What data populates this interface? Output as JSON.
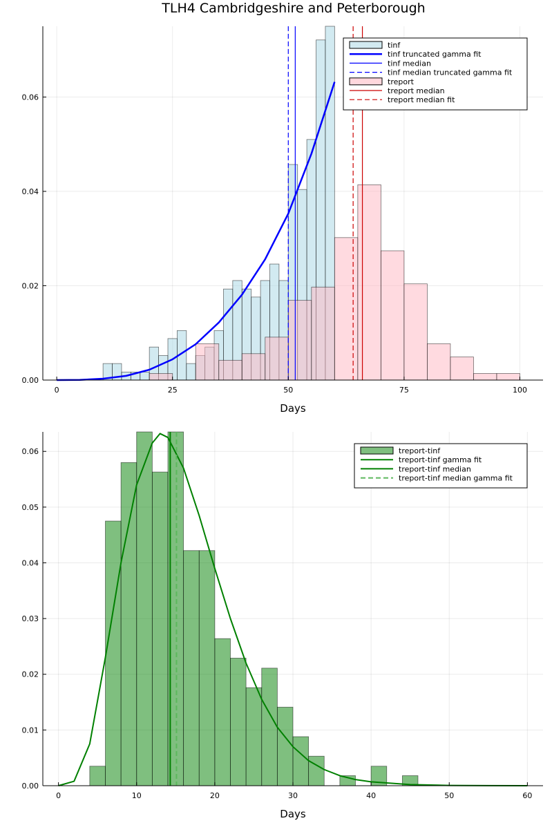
{
  "colors": {
    "tinf_fill": "#add8e6",
    "treport_fill": "#ffb6c1",
    "diff_fill": "#008000",
    "blue": "#0000ff",
    "red": "#cc0000",
    "green": "#008000",
    "bar_stroke": "#000000"
  },
  "chart_data": [
    {
      "type": "histogram",
      "title": "TLH4 Cambridgeshire and Peterborough",
      "xlabel": "Days",
      "ylabel": "",
      "xlim": [
        -3,
        105
      ],
      "ylim": [
        0,
        0.075
      ],
      "xticks": [
        0,
        25,
        50,
        75,
        100
      ],
      "xtick_labels": [
        "0",
        "25",
        "50",
        "75",
        "100"
      ],
      "yticks": [
        0,
        0.02,
        0.04,
        0.06
      ],
      "ytick_labels": [
        "0.00",
        "0.02",
        "0.04",
        "0.06"
      ],
      "grid": true,
      "legend_position": "top-right",
      "legend": [
        {
          "label": "tinf",
          "kind": "patch",
          "color": "#add8e6"
        },
        {
          "label": "tinf truncated gamma fit",
          "kind": "line",
          "color": "#0000ff",
          "dash": false,
          "width": 2.5
        },
        {
          "label": "tinf median",
          "kind": "line",
          "color": "#0000ff",
          "dash": false,
          "width": 1.2
        },
        {
          "label": "tinf median truncated gamma fit",
          "kind": "line",
          "color": "#0000ff",
          "dash": true,
          "width": 1.2
        },
        {
          "label": "treport",
          "kind": "patch",
          "color": "#ffb6c1"
        },
        {
          "label": "treport median",
          "kind": "line",
          "color": "#cc0000",
          "dash": false,
          "width": 1.2
        },
        {
          "label": "treport median fit",
          "kind": "line",
          "color": "#cc0000",
          "dash": true,
          "width": 1.2
        }
      ],
      "histograms": [
        {
          "name": "tinf",
          "color": "#add8e6",
          "opacity": 0.55,
          "bin_width": 2,
          "bins": [
            [
              10,
              0.0035
            ],
            [
              12,
              0.0035
            ],
            [
              14,
              0.0017
            ],
            [
              16,
              0.0017
            ],
            [
              18,
              0.0017
            ],
            [
              20,
              0.007
            ],
            [
              22,
              0.0052
            ],
            [
              24,
              0.0088
            ],
            [
              26,
              0.0105
            ],
            [
              28,
              0.0035
            ],
            [
              30,
              0.0052
            ],
            [
              32,
              0.007
            ],
            [
              34,
              0.0105
            ],
            [
              36,
              0.0193
            ],
            [
              38,
              0.0211
            ],
            [
              40,
              0.0193
            ],
            [
              42,
              0.0176
            ],
            [
              44,
              0.0211
            ],
            [
              46,
              0.0246
            ],
            [
              48,
              0.0211
            ],
            [
              50,
              0.0457
            ],
            [
              52,
              0.0404
            ],
            [
              54,
              0.051
            ],
            [
              56,
              0.0721
            ],
            [
              58,
              0.0756
            ]
          ]
        },
        {
          "name": "treport",
          "color": "#ffb6c1",
          "opacity": 0.5,
          "bin_width": 5,
          "bins": [
            [
              20,
              0.0014
            ],
            [
              30,
              0.0077
            ],
            [
              35,
              0.0042
            ],
            [
              40,
              0.0056
            ],
            [
              45,
              0.0091
            ],
            [
              50,
              0.0169
            ],
            [
              55,
              0.0197
            ],
            [
              60,
              0.0302
            ],
            [
              65,
              0.0414
            ],
            [
              70,
              0.0274
            ],
            [
              75,
              0.0204
            ],
            [
              80,
              0.0077
            ],
            [
              85,
              0.0049
            ],
            [
              90,
              0.0014
            ],
            [
              95,
              0.0014
            ]
          ]
        }
      ],
      "curves": [
        {
          "name": "tinf truncated gamma fit",
          "color": "#0000ff",
          "width": 2.5,
          "x": [
            0,
            5,
            10,
            15,
            20,
            25,
            30,
            35,
            40,
            45,
            50,
            55,
            60
          ],
          "y": [
            0,
            3e-05,
            0.0003,
            0.0009,
            0.0022,
            0.0044,
            0.0076,
            0.0122,
            0.0181,
            0.0256,
            0.0353,
            0.048,
            0.0632
          ]
        }
      ],
      "vlines": [
        {
          "name": "tinf median",
          "x": 51.5,
          "color": "#0000ff",
          "dash": false,
          "width": 1.2
        },
        {
          "name": "tinf median truncated gamma fit",
          "x": 50.0,
          "color": "#0000ff",
          "dash": true,
          "width": 1.2
        },
        {
          "name": "treport median",
          "x": 66.0,
          "color": "#cc0000",
          "dash": false,
          "width": 1.2
        },
        {
          "name": "treport median fit",
          "x": 64.0,
          "color": "#cc0000",
          "dash": true,
          "width": 1.2
        }
      ]
    },
    {
      "type": "histogram",
      "title": "",
      "xlabel": "Days",
      "ylabel": "",
      "xlim": [
        -2,
        62
      ],
      "ylim": [
        0,
        0.0635
      ],
      "xticks": [
        0,
        10,
        20,
        30,
        40,
        50,
        60
      ],
      "xtick_labels": [
        "0",
        "10",
        "20",
        "30",
        "40",
        "50",
        "60"
      ],
      "yticks": [
        0,
        0.01,
        0.02,
        0.03,
        0.04,
        0.05,
        0.06
      ],
      "ytick_labels": [
        "0.00",
        "0.01",
        "0.02",
        "0.03",
        "0.04",
        "0.05",
        "0.06"
      ],
      "grid": true,
      "legend_position": "top-right",
      "legend": [
        {
          "label": "treport-tinf",
          "kind": "patch",
          "color": "#008000"
        },
        {
          "label": "treport-tinf gamma fit",
          "kind": "line",
          "color": "#008000",
          "dash": false,
          "width": 2
        },
        {
          "label": "treport-tinf median",
          "kind": "line",
          "color": "#008000",
          "dash": false,
          "width": 2
        },
        {
          "label": "treport-tinf median gamma fit",
          "kind": "line",
          "color": "#5cb85c",
          "dash": true,
          "width": 2
        }
      ],
      "histograms": [
        {
          "name": "treport-tinf",
          "color": "#008000",
          "opacity": 0.5,
          "bin_width": 2,
          "bins": [
            [
              4,
              0.0035
            ],
            [
              6,
              0.0475
            ],
            [
              8,
              0.058
            ],
            [
              10,
              0.0635
            ],
            [
              12,
              0.0563
            ],
            [
              14,
              0.0635
            ],
            [
              16,
              0.0422
            ],
            [
              18,
              0.0422
            ],
            [
              20,
              0.0264
            ],
            [
              22,
              0.0229
            ],
            [
              24,
              0.0176
            ],
            [
              26,
              0.0211
            ],
            [
              28,
              0.0141
            ],
            [
              30,
              0.0088
            ],
            [
              32,
              0.0053
            ],
            [
              36,
              0.0018
            ],
            [
              40,
              0.0035
            ],
            [
              44,
              0.0018
            ]
          ]
        }
      ],
      "curves": [
        {
          "name": "treport-tinf gamma fit",
          "color": "#008000",
          "width": 2,
          "x": [
            0,
            2,
            4,
            6,
            8,
            10,
            12,
            13,
            14,
            16,
            18,
            20,
            22,
            24,
            26,
            28,
            30,
            32,
            34,
            36,
            38,
            40,
            45,
            50,
            55,
            60
          ],
          "y": [
            0,
            0.0008,
            0.0075,
            0.023,
            0.04,
            0.054,
            0.0615,
            0.0632,
            0.0625,
            0.057,
            0.0485,
            0.039,
            0.03,
            0.022,
            0.0155,
            0.0105,
            0.007,
            0.0045,
            0.0029,
            0.0018,
            0.0011,
            0.0007,
            0.0002,
            5e-05,
            1e-05,
            0
          ]
        }
      ],
      "vlines": [
        {
          "name": "treport-tinf median",
          "x": 14.3,
          "color": "#008000",
          "dash": false,
          "width": 2
        },
        {
          "name": "treport-tinf median gamma fit",
          "x": 15.1,
          "color": "#5cb85c",
          "dash": true,
          "width": 2
        }
      ]
    }
  ]
}
